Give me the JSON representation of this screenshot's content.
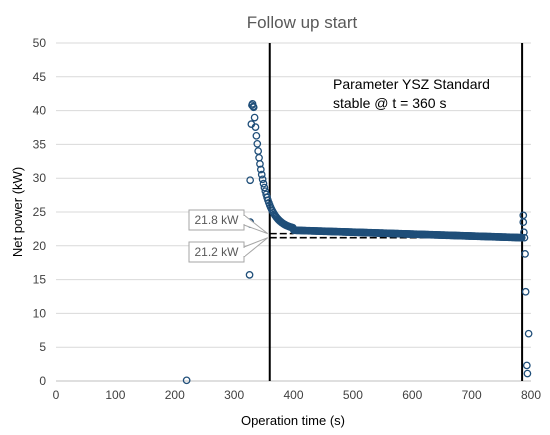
{
  "chart_data": {
    "type": "scatter",
    "title": "Follow up start",
    "xlabel": "Operation time (s)",
    "ylabel": "Net power (kW)",
    "xlim": [
      0,
      800
    ],
    "ylim": [
      0,
      50
    ],
    "xticks": [
      0,
      100,
      200,
      300,
      400,
      500,
      600,
      700,
      800
    ],
    "yticks": [
      0,
      5,
      10,
      15,
      20,
      25,
      30,
      35,
      40,
      45,
      50
    ],
    "grid": "horizontal",
    "colors": {
      "marker": "#1f4e79",
      "grid": "#d9d9d9",
      "axis": "#bfbfbf"
    },
    "annotation": {
      "line1": "Parameter YSZ Standard",
      "line2": "stable @ t = 360 s"
    },
    "vertical_lines": [
      360,
      785
    ],
    "reference_lines": [
      {
        "label": "21.8 kW",
        "y": 21.8,
        "x_start": 360,
        "x_end": 400
      },
      {
        "label": "21.2 kW",
        "y": 21.2,
        "x_start": 360,
        "x_end": 785
      }
    ],
    "outlier_points": [
      {
        "x": 220,
        "y": 0.1
      },
      {
        "x": 326,
        "y": 15.7
      },
      {
        "x": 327,
        "y": 29.7
      },
      {
        "x": 327,
        "y": 23.5
      },
      {
        "x": 328,
        "y": 23.2
      },
      {
        "x": 329,
        "y": 38.0
      },
      {
        "x": 330,
        "y": 40.8
      },
      {
        "x": 331,
        "y": 41.0
      },
      {
        "x": 332,
        "y": 40.6
      },
      {
        "x": 787,
        "y": 24.5
      },
      {
        "x": 787,
        "y": 23.5
      },
      {
        "x": 788,
        "y": 22.0
      },
      {
        "x": 789,
        "y": 21.2
      },
      {
        "x": 790,
        "y": 18.8
      },
      {
        "x": 791,
        "y": 13.2
      },
      {
        "x": 793,
        "y": 2.3
      },
      {
        "x": 794,
        "y": 1.1
      },
      {
        "x": 796,
        "y": 7.0
      }
    ],
    "main_series": {
      "x_start": 333,
      "x_end": 785,
      "step": 1.5,
      "decay": {
        "y_start": 40.5,
        "y_plateau": 22.3,
        "tau": 17
      },
      "plateau_slope": {
        "from_x": 400,
        "from_y": 22.3,
        "to_x": 785,
        "to_y": 21.2
      }
    }
  }
}
